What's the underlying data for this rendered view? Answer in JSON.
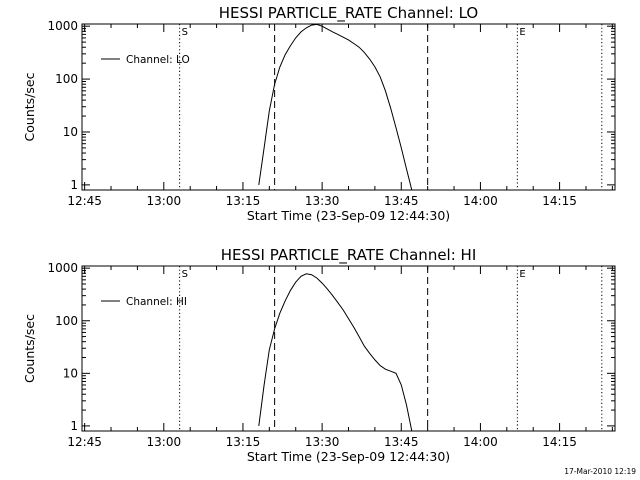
{
  "footer_timestamp": "17-Mar-2010 12:19",
  "chart_data": [
    {
      "type": "line",
      "title": "HESSI PARTICLE_RATE Channel: LO",
      "xlabel": "Start Time (23-Sep-09 12:44:30)",
      "ylabel": "Counts/sec",
      "yscale": "log",
      "ylim": [
        0.8,
        1100
      ],
      "xlim": [
        "12:44:30",
        "14:25:30"
      ],
      "xticks": [
        "12:45",
        "13:00",
        "13:15",
        "13:30",
        "13:45",
        "14:00",
        "14:15"
      ],
      "yticks": [
        "1",
        "10",
        "100",
        "1000"
      ],
      "legend": {
        "position": "top-left",
        "entries": [
          "Channel: LO"
        ]
      },
      "markers": [
        {
          "label": "S",
          "time": "13:03:00",
          "style": "dotted"
        },
        {
          "label": "",
          "time": "13:21:00",
          "style": "dashed"
        },
        {
          "label": "",
          "time": "13:50:00",
          "style": "dashed"
        },
        {
          "label": "E",
          "time": "14:07:00",
          "style": "dotted"
        },
        {
          "label": "",
          "time": "14:23:00",
          "style": "dotted"
        }
      ],
      "series": [
        {
          "name": "Channel: LO",
          "x": [
            "13:18:00",
            "13:19:00",
            "13:20:00",
            "13:21:00",
            "13:22:00",
            "13:23:00",
            "13:24:00",
            "13:25:00",
            "13:26:00",
            "13:27:00",
            "13:28:00",
            "13:29:00",
            "13:30:00",
            "13:31:00",
            "13:32:00",
            "13:33:00",
            "13:34:00",
            "13:35:00",
            "13:36:00",
            "13:37:00",
            "13:38:00",
            "13:39:00",
            "13:40:00",
            "13:41:00",
            "13:42:00",
            "13:43:00",
            "13:44:00",
            "13:45:00",
            "13:46:00",
            "13:47:00"
          ],
          "y": [
            1,
            5,
            25,
            80,
            170,
            290,
            430,
            600,
            780,
            930,
            1050,
            1080,
            1000,
            880,
            780,
            700,
            620,
            550,
            470,
            400,
            320,
            240,
            170,
            110,
            60,
            28,
            12,
            5,
            2,
            0.8
          ]
        }
      ]
    },
    {
      "type": "line",
      "title": "HESSI PARTICLE_RATE Channel: HI",
      "xlabel": "Start Time (23-Sep-09 12:44:30)",
      "ylabel": "Counts/sec",
      "yscale": "log",
      "ylim": [
        0.8,
        1100
      ],
      "xlim": [
        "12:44:30",
        "14:25:30"
      ],
      "xticks": [
        "12:45",
        "13:00",
        "13:15",
        "13:30",
        "13:45",
        "14:00",
        "14:15"
      ],
      "yticks": [
        "1",
        "10",
        "100",
        "1000"
      ],
      "legend": {
        "position": "top-left",
        "entries": [
          "Channel: HI"
        ]
      },
      "markers": [
        {
          "label": "S",
          "time": "13:03:00",
          "style": "dotted"
        },
        {
          "label": "",
          "time": "13:21:00",
          "style": "dashed"
        },
        {
          "label": "",
          "time": "13:50:00",
          "style": "dashed"
        },
        {
          "label": "E",
          "time": "14:07:00",
          "style": "dotted"
        },
        {
          "label": "",
          "time": "14:23:00",
          "style": "dotted"
        }
      ],
      "series": [
        {
          "name": "Channel: HI",
          "x": [
            "13:18:00",
            "13:19:00",
            "13:20:00",
            "13:21:00",
            "13:22:00",
            "13:23:00",
            "13:24:00",
            "13:25:00",
            "13:26:00",
            "13:27:00",
            "13:28:00",
            "13:29:00",
            "13:30:00",
            "13:31:00",
            "13:32:00",
            "13:33:00",
            "13:34:00",
            "13:35:00",
            "13:36:00",
            "13:37:00",
            "13:38:00",
            "13:39:00",
            "13:40:00",
            "13:41:00",
            "13:42:00",
            "13:43:00",
            "13:44:00",
            "13:45:00",
            "13:46:00",
            "13:47:00"
          ],
          "y": [
            1,
            6,
            28,
            70,
            140,
            240,
            380,
            540,
            700,
            780,
            750,
            650,
            520,
            400,
            300,
            220,
            160,
            110,
            75,
            50,
            33,
            24,
            18,
            14,
            12,
            11,
            10,
            6,
            2.5,
            0.8
          ]
        }
      ]
    }
  ]
}
